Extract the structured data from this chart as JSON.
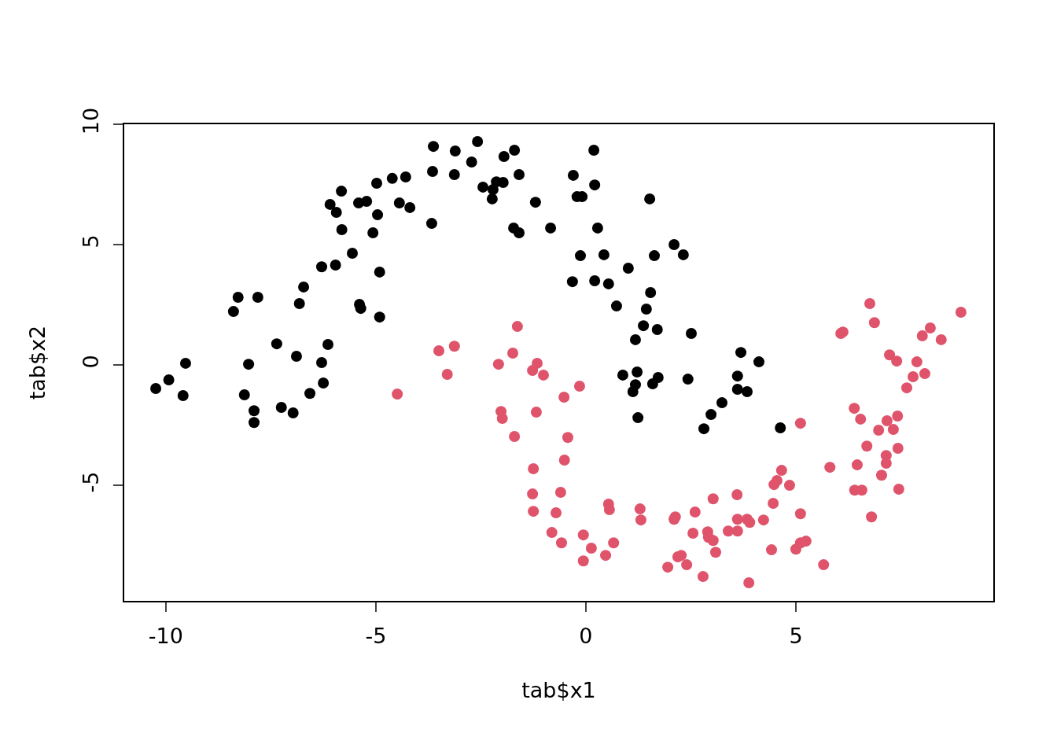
{
  "chart_data": {
    "type": "scatter",
    "xlabel": "tab$x1",
    "ylabel": "tab$x2",
    "xlim": [
      -10.99,
      9.7
    ],
    "ylim": [
      -9.8,
      10
    ],
    "xticks": [
      -10,
      -5,
      0,
      5
    ],
    "yticks": [
      -5,
      0,
      5,
      10
    ],
    "grid": false,
    "marker": "circle",
    "series": [
      {
        "color": "#000000",
        "x": [
          -10.24,
          -9.93,
          -9.59,
          -9.53,
          -8.39,
          -8.28,
          -7.81,
          -8.13,
          -8.03,
          -7.9,
          -7.9,
          -7.36,
          -7.25,
          -6.97,
          -6.89,
          -6.82,
          -6.72,
          -6.57,
          -6.29,
          -6.29,
          -6.25,
          -6.14,
          -6.09,
          -5.96,
          -5.94,
          -5.82,
          -5.81,
          -5.56,
          -5.41,
          -5.39,
          -5.36,
          -5.22,
          -5.07,
          -4.98,
          -4.96,
          -4.91,
          -4.91,
          -4.61,
          -4.44,
          -4.29,
          -4.19,
          -3.67,
          -3.65,
          -3.63,
          -3.13,
          -3.11,
          -2.72,
          -2.58,
          -2.45,
          -2.23,
          -2.21,
          -2.13,
          -1.97,
          -1.95,
          -1.7,
          -1.72,
          -1.59,
          -1.59,
          -1.2,
          -0.84,
          -0.3,
          -0.32,
          -0.21,
          -0.09,
          -0.13,
          0.19,
          0.21,
          0.21,
          0.28,
          0.43,
          0.54,
          0.73,
          0.88,
          1.01,
          1.12,
          1.18,
          1.18,
          1.22,
          1.24,
          1.37,
          1.44,
          1.52,
          1.54,
          1.59,
          1.63,
          1.7,
          1.72,
          2.1,
          2.32,
          2.43,
          2.51,
          2.81,
          2.98,
          3.24,
          3.61,
          3.61,
          3.69,
          3.84,
          4.12,
          4.63
        ],
        "values": [
          -0.98,
          -0.62,
          -1.27,
          0.07,
          2.22,
          2.81,
          2.81,
          -1.24,
          0.03,
          -1.9,
          -2.39,
          0.88,
          -1.76,
          -1.99,
          0.36,
          2.55,
          3.24,
          -1.18,
          4.08,
          0.1,
          -0.75,
          0.85,
          6.67,
          4.15,
          6.34,
          7.22,
          5.62,
          4.64,
          6.73,
          2.52,
          2.35,
          6.8,
          5.49,
          7.55,
          6.24,
          3.86,
          1.99,
          7.75,
          6.73,
          7.81,
          6.54,
          5.88,
          8.04,
          9.08,
          7.91,
          8.89,
          8.43,
          9.28,
          7.39,
          6.9,
          7.29,
          7.61,
          7.58,
          8.66,
          8.92,
          5.69,
          7.91,
          5.49,
          6.76,
          5.69,
          7.88,
          3.46,
          6.99,
          6.99,
          4.54,
          8.92,
          7.48,
          3.5,
          5.69,
          4.58,
          3.37,
          2.45,
          -0.42,
          4.02,
          -1.11,
          1.05,
          -0.82,
          -0.29,
          -2.19,
          1.63,
          2.32,
          6.9,
          3.01,
          -0.78,
          4.54,
          1.47,
          -0.52,
          5,
          4.58,
          -0.59,
          1.31,
          -2.65,
          -2.06,
          -1.57,
          -0.46,
          -1.01,
          0.52,
          -1.11,
          0.13,
          -2.61
        ]
      },
      {
        "color": "#df536b",
        "x": [
          -4.49,
          -3.5,
          -3.3,
          -3.13,
          -2.08,
          -2.02,
          -1.99,
          -1.74,
          -1.7,
          -1.63,
          -1.27,
          -1.25,
          -1.25,
          -1.27,
          -1.16,
          -1.18,
          -1.01,
          -0.81,
          -0.71,
          -0.6,
          -0.58,
          -0.52,
          -0.51,
          -0.43,
          -0.15,
          -0.06,
          -0.06,
          0.13,
          0.47,
          0.54,
          0.56,
          0.66,
          1.29,
          1.31,
          1.95,
          2.1,
          2.13,
          2.19,
          2.27,
          2.4,
          2.55,
          2.6,
          2.79,
          2.9,
          2.92,
          3.03,
          3.03,
          3.09,
          3.39,
          3.6,
          3.61,
          3.61,
          3.84,
          3.9,
          3.88,
          4.23,
          4.42,
          4.46,
          4.48,
          4.55,
          4.66,
          4.85,
          5,
          5.11,
          5.11,
          5.11,
          5.24,
          5.66,
          5.81,
          6.07,
          6.12,
          6.39,
          6.4,
          6.46,
          6.54,
          6.57,
          6.69,
          6.76,
          6.8,
          6.87,
          6.97,
          7.04,
          7.15,
          7.15,
          7.17,
          7.23,
          7.32,
          7.4,
          7.42,
          7.43,
          7.45,
          7.64,
          7.79,
          7.88,
          8.01,
          8.07,
          8.2,
          8.46,
          8.93
        ],
        "values": [
          -1.21,
          0.59,
          -0.39,
          0.78,
          0.03,
          -1.93,
          -2.22,
          0.49,
          -2.97,
          1.6,
          -5.36,
          -4.31,
          -6.08,
          -0.23,
          0.07,
          -1.96,
          -0.42,
          -6.96,
          -6.14,
          -5.29,
          -7.39,
          -1.34,
          -3.95,
          -3.01,
          -0.88,
          -7.06,
          -8.14,
          -7.61,
          -7.91,
          -5.78,
          -6.01,
          -7.39,
          -5.98,
          -6.44,
          -8.4,
          -6.41,
          -6.31,
          -7.97,
          -7.91,
          -8.3,
          -6.99,
          -6.11,
          -8.79,
          -6.93,
          -7.16,
          -7.29,
          -5.56,
          -7.78,
          -6.9,
          -5.39,
          -6.41,
          -6.9,
          -6.41,
          -6.54,
          -9.05,
          -6.44,
          -7.68,
          -5.75,
          -4.97,
          -4.8,
          -4.38,
          -5,
          -7.65,
          -7.39,
          -6.18,
          -2.42,
          -7.32,
          -8.3,
          -4.25,
          1.31,
          1.37,
          -1.8,
          -5.2,
          -4.15,
          -2.25,
          -5.2,
          -3.37,
          2.55,
          -6.31,
          1.76,
          -2.71,
          -4.58,
          -3.76,
          -4.08,
          -2.32,
          0.42,
          -2.68,
          0.16,
          -2.12,
          -3.46,
          -5.16,
          -0.95,
          -0.49,
          0.13,
          1.21,
          -0.36,
          1.54,
          1.05,
          2.19
        ]
      }
    ]
  }
}
